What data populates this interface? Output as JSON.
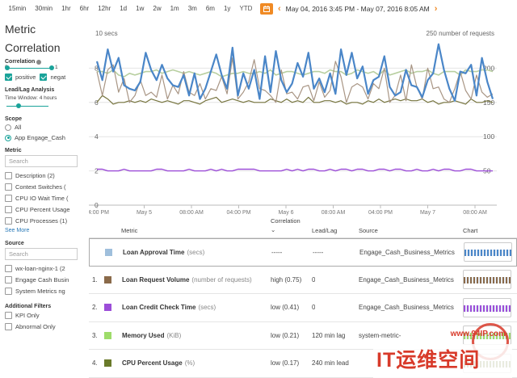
{
  "toolbar": {
    "ranges": [
      "15min",
      "30min",
      "1hr",
      "6hr",
      "12hr",
      "1d",
      "1w",
      "2w",
      "1m",
      "3m",
      "6m",
      "1y",
      "YTD"
    ],
    "date_range": "May 04, 2016 3:45 PM - May 07, 2016 8:05 AM"
  },
  "sidebar": {
    "title_line1": "Metric",
    "title_line2": "Correlation",
    "correlation_label": "Correlation",
    "corr_min": "0",
    "corr_max": "1",
    "positive_label": "positive",
    "negative_label": "negat",
    "leadlag_label": "Lead/Lag Analysis",
    "time_window": "Time Window: 4 hours",
    "scope_label": "Scope",
    "scope_all": "All",
    "scope_app": "App Engage_Cash",
    "metric_label": "Metric",
    "search_placeholder": "Search",
    "metric_items": [
      "Description (2)",
      "Context Switches (",
      "CPU IO Wait Time (",
      "CPU Percent Usage",
      "CPU Processes (1)"
    ],
    "see_more": "See More",
    "source_label": "Source",
    "source_items": [
      "wx-loan-nginx-1 (2",
      "Engage Cash Busin",
      "System Metrics ng"
    ],
    "filters_label": "Additional Filters",
    "filter_items": [
      "KPI Only",
      "Abnormal Only"
    ]
  },
  "chart_data": {
    "type": "line",
    "left_axis_title": "10 secs",
    "right_axis_title": "250 number of requests",
    "left_ticks": [
      "8",
      "6",
      "4",
      "2",
      "0"
    ],
    "right_ticks": [
      "200",
      "150",
      "100",
      "50"
    ],
    "x_ticks": [
      "04:00 PM",
      "May 5",
      "08:00 AM",
      "04:00 PM",
      "May 6",
      "08:00 AM",
      "04:00 PM",
      "May 7",
      "08:00 AM"
    ],
    "series": [
      {
        "color": "#4a86c8",
        "values": [
          8.4,
          7.3,
          9.1,
          7.8,
          8.6,
          7.0,
          6.8,
          6.7,
          7.2,
          8.9,
          7.9,
          7.3,
          8.2,
          7.4,
          7.0,
          6.9,
          7.6,
          6.4,
          7.7,
          6.2,
          6.8,
          7.8,
          8.8,
          7.6,
          6.8,
          9.2,
          6.4,
          7.7,
          6.8,
          7.9,
          6.2,
          8.7,
          6.6,
          9.0,
          7.3,
          6.6,
          7.1,
          8.3,
          7.5,
          8.9,
          6.8,
          7.4,
          6.6,
          7.7,
          6.5,
          9.1,
          7.6,
          8.9,
          7.4,
          8.1,
          6.5,
          7.3,
          7.5,
          8.7,
          6.9,
          6.4,
          6.6,
          7.9,
          7.0,
          6.9,
          6.3,
          7.3,
          7.7,
          9.4,
          7.9,
          6.8,
          6.1,
          7.8,
          7.7,
          8.2,
          6.4,
          8.6,
          7.2,
          6.2
        ]
      },
      {
        "color": "#a89584",
        "values": [
          7.8,
          6.4,
          7.9,
          8.2,
          6.6,
          7.4,
          6.0,
          6.4,
          7.3,
          6.4,
          6.6,
          6.3,
          7.6,
          6.2,
          7.0,
          6.5,
          7.8,
          6.6,
          6.4,
          7.1,
          6.2,
          6.8,
          6.7,
          7.5,
          6.5,
          8.6,
          6.2,
          6.6,
          7.2,
          8.5,
          6.8,
          6.7,
          6.4,
          6.0,
          7.9,
          6.5,
          6.6,
          6.2,
          6.9,
          7.0,
          6.1,
          7.2,
          6.3,
          6.7,
          8.4,
          7.5,
          6.0,
          6.9,
          7.1,
          6.9,
          6.2,
          7.1,
          6.8,
          8.0,
          6.0,
          6.4,
          7.6,
          6.1,
          8.2,
          6.9,
          6.2,
          8.0,
          6.8,
          6.9,
          6.2,
          6.0,
          6.8,
          7.8,
          6.7,
          6.2,
          7.6,
          6.6,
          6.3,
          6.5
        ]
      },
      {
        "color": "#b8cfa0",
        "values": [
          7.8,
          7.8,
          7.7,
          7.9,
          7.6,
          7.5,
          7.7,
          7.6,
          7.7,
          7.8,
          7.8,
          7.9,
          7.7,
          7.8,
          7.9,
          7.8,
          7.7,
          7.8,
          7.7,
          7.6,
          7.7,
          7.8,
          7.7,
          7.5,
          7.6,
          7.7,
          7.7,
          7.8,
          7.7,
          7.7,
          7.8,
          7.7,
          7.9,
          7.6,
          7.7,
          7.8,
          7.8,
          7.7,
          7.6,
          7.7,
          7.8,
          7.8,
          7.7,
          7.9,
          7.8,
          7.8,
          7.6,
          7.7,
          7.9,
          7.8,
          7.7,
          7.8,
          7.6,
          7.9,
          7.6,
          7.7,
          7.8,
          7.9,
          7.7,
          7.8,
          7.8,
          7.9,
          7.7,
          7.6,
          7.8,
          7.8,
          7.8,
          7.6,
          7.9,
          7.8,
          7.8,
          7.9,
          7.9,
          7.8
        ]
      },
      {
        "color": "#76743e",
        "values": [
          6.0,
          6.4,
          6.2,
          5.9,
          6.0,
          6.0,
          6.1,
          6.0,
          6.1,
          6.0,
          6.2,
          6.1,
          6.0,
          6.1,
          6.0,
          5.9,
          6.1,
          6.1,
          6.0,
          5.9,
          6.1,
          6.2,
          6.3,
          6.0,
          6.1,
          6.2,
          6.1,
          6.0,
          6.1,
          6.0,
          6.0,
          6.0,
          6.2,
          6.1,
          6.0,
          6.2,
          6.0,
          6.1,
          6.0,
          6.3,
          6.0,
          6.0,
          6.1,
          6.1,
          6.0,
          6.1,
          5.9,
          6.0,
          6.0,
          5.9,
          6.1,
          6.0,
          6.2,
          6.0,
          6.1,
          6.2,
          6.1,
          6.2,
          6.1,
          6.1,
          6.2,
          6.0,
          6.1,
          5.9,
          6.0,
          6.0,
          6.1,
          6.0,
          5.9,
          6.2,
          6.0,
          6.0,
          6.1,
          6.0
        ]
      },
      {
        "color": "#9c4dd8",
        "values": [
          2.1,
          2.1,
          2.0,
          2.0,
          2.0,
          2.1,
          2.0,
          2.0,
          2.0,
          2.0,
          2.0,
          2.1,
          2.1,
          2.0,
          2.0,
          2.0,
          2.0,
          2.1,
          2.0,
          2.0,
          2.0,
          2.1,
          2.0,
          2.1,
          2.0,
          2.0,
          2.1,
          2.1,
          2.1,
          2.1,
          2.0,
          2.0,
          2.0,
          2.0,
          2.0,
          2.1,
          2.0,
          2.1,
          2.0,
          2.1,
          2.1,
          2.0,
          2.0,
          2.1,
          2.0,
          2.1,
          2.1,
          2.0,
          2.1,
          2.1,
          2.0,
          2.0,
          2.1,
          2.1,
          2.0,
          2.1,
          2.1,
          2.0,
          2.0,
          2.1,
          2.0,
          2.0,
          2.1,
          2.0,
          2.1,
          2.1,
          2.0,
          2.0,
          2.1,
          2.1,
          2.0,
          2.0,
          2.0,
          2.0
        ]
      }
    ]
  },
  "table": {
    "headers": {
      "metric": "Metric",
      "correlation": "Correlation",
      "leadlag": "Lead/Lag",
      "source": "Source",
      "chart": "Chart"
    },
    "rows": [
      {
        "index": "",
        "color": "#9fbfdc",
        "name": "Loan Approval Time",
        "unit": "(secs)",
        "correlation": "-----",
        "leadlag": "-----",
        "source": "Engage_Cash_Business_Metrics",
        "spark": "#4a86c8"
      },
      {
        "index": "1.",
        "color": "#8a6a4a",
        "name": "Loan Request Volume",
        "unit": "(number of requests)",
        "correlation": "high (0.75)",
        "leadlag": "0",
        "source": "Engage_Cash_Business_Metrics",
        "spark": "#8a6a4a"
      },
      {
        "index": "2.",
        "color": "#9c4dd8",
        "name": "Loan Credit Check Time",
        "unit": "(secs)",
        "correlation": "low (0.41)",
        "leadlag": "0",
        "source": "Engage_Cash_Business_Metrics",
        "spark": "#9c4dd8"
      },
      {
        "index": "3.",
        "color": "#9edc6a",
        "name": "Memory Used",
        "unit": "(KiB)",
        "correlation": "low (0.21)",
        "leadlag": "120 min lag",
        "source": "system-metric-",
        "spark": "#9edc6a"
      },
      {
        "index": "4.",
        "color": "#6a7a2a",
        "name": "CPU Percent Usage",
        "unit": "(%)",
        "correlation": "low (0.17)",
        "leadlag": "240 min lead",
        "source": "",
        "spark": "#6a7a2a"
      }
    ]
  },
  "watermark": {
    "url": "www.94IP.com",
    "text": "IT运维空间"
  }
}
